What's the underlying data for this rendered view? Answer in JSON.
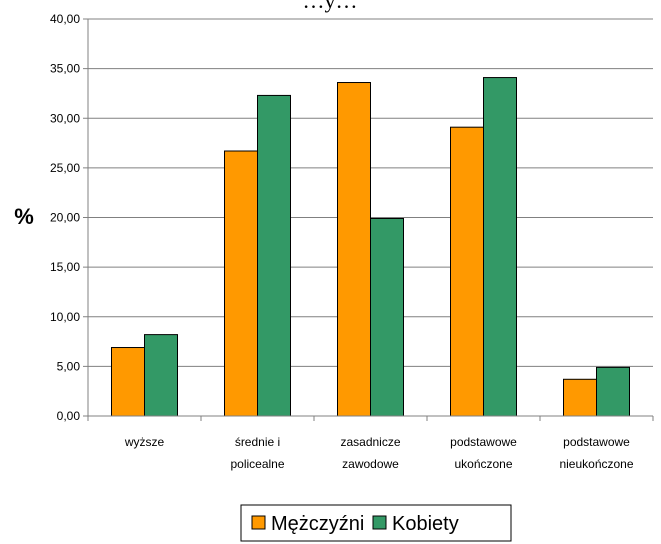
{
  "chart_data": {
    "type": "bar",
    "title": "…y…",
    "ylabel": "%",
    "xlabel": "",
    "ylim": [
      0,
      40
    ],
    "ytick_step": 5,
    "ytick_labels": [
      "0,00",
      "5,00",
      "10,00",
      "15,00",
      "20,00",
      "25,00",
      "30,00",
      "35,00",
      "40,00"
    ],
    "categories": [
      [
        "wyższe"
      ],
      [
        "średnie i",
        "policealne"
      ],
      [
        "zasadnicze",
        "zawodowe"
      ],
      [
        "podstawowe",
        "ukończone"
      ],
      [
        "podstawowe",
        "nieukończone"
      ]
    ],
    "series": [
      {
        "name": "Mężczyźni",
        "color": "#ff9900",
        "values": [
          6.9,
          26.7,
          33.6,
          29.1,
          3.7
        ]
      },
      {
        "name": "Kobiety",
        "color": "#339966",
        "values": [
          8.2,
          32.3,
          19.9,
          34.1,
          4.9
        ]
      }
    ],
    "grid": true,
    "legend_position": "bottom"
  }
}
